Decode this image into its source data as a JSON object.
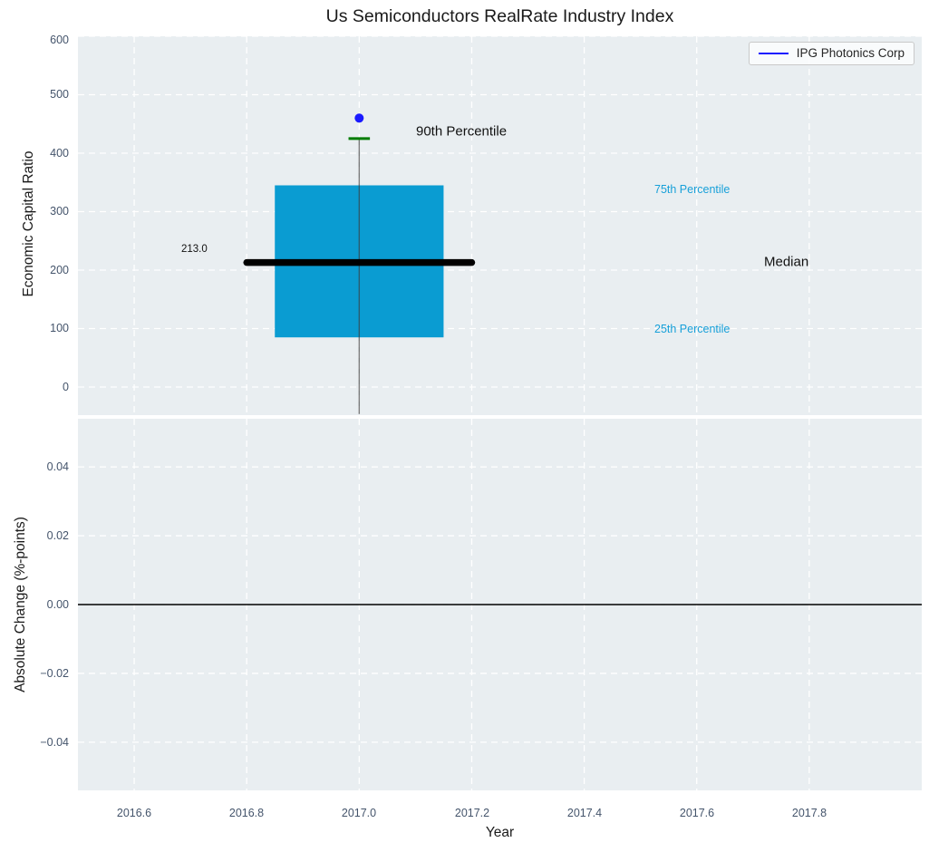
{
  "title": "Us Semiconductors RealRate Industry Index",
  "xaxis": {
    "label": "Year",
    "tick_labels": [
      "2016.6",
      "2016.8",
      "2017.0",
      "2017.2",
      "2017.4",
      "2017.6",
      "2017.8"
    ]
  },
  "top_plot": {
    "ylabel": "Economic Capital Ratio",
    "ytick_labels": [
      "600",
      "500",
      "400",
      "300",
      "200",
      "100",
      "0"
    ],
    "legend": {
      "label": "IPG Photonics Corp"
    }
  },
  "bottom_plot": {
    "ylabel": "Absolute Change (%-points)",
    "ytick_labels": [
      "0.04",
      "0.02",
      "0.00",
      "−0.02",
      "−0.04"
    ]
  },
  "colors": {
    "figure_bg": "#ffffff",
    "axes_bg": "#e9eef1",
    "grid": "#ffffff",
    "box_fill": "#0a9cd2",
    "median_line": "#000000",
    "whisker": "#3c3c3c",
    "whisker_cap": "#007c00",
    "point": "#1a1aff",
    "legend_line": "#1a1aff",
    "percentile_label": "#17a0d9",
    "tick_label": "#44546b",
    "zero_line": "#000000"
  },
  "chart_data": [
    {
      "type": "box",
      "name": "economic-capital-ratio-panel",
      "title": "Us Semiconductors RealRate Industry Index",
      "ylabel": "Economic Capital Ratio",
      "xlim": [
        2016.5,
        2018.0
      ],
      "ylim": [
        -48,
        600
      ],
      "xticks": [
        2016.6,
        2016.8,
        2017.0,
        2017.2,
        2017.4,
        2017.6,
        2017.8
      ],
      "yticks": [
        0,
        100,
        200,
        300,
        400,
        500,
        600
      ],
      "grid": true,
      "legend_position": "upper right",
      "box": {
        "x": 2017.0,
        "box_left": 2016.85,
        "box_right": 2017.15,
        "q1": 85,
        "median": 213.0,
        "q3": 345,
        "p90": 425,
        "whisker_low": -46,
        "median_line_left": 2016.8,
        "median_line_right": 2017.2,
        "cap_halfwidth": 0.019
      },
      "point": {
        "x": 2017.0,
        "y": 460,
        "series": "IPG Photonics Corp"
      },
      "annotations": [
        {
          "text": "90th Percentile",
          "x": 2017.1,
          "y": 435
        },
        {
          "text": "75th Percentile",
          "x": 2017.52,
          "y": 335
        },
        {
          "text": "25th Percentile",
          "x": 2017.52,
          "y": 95
        },
        {
          "text": "Median",
          "x": 2017.72,
          "y": 213
        },
        {
          "text": "213.0",
          "x": 2016.69,
          "y": 235
        }
      ]
    },
    {
      "type": "line",
      "name": "absolute-change-panel",
      "ylabel": "Absolute Change (%-points)",
      "xlabel": "Year",
      "xlim": [
        2016.5,
        2018.0
      ],
      "ylim": [
        -0.054,
        0.054
      ],
      "xticks": [
        2016.6,
        2016.8,
        2017.0,
        2017.2,
        2017.4,
        2017.6,
        2017.8
      ],
      "yticks": [
        0.04,
        0.02,
        0.0,
        -0.02,
        -0.04
      ],
      "grid": true,
      "zero_line": 0.0,
      "series": []
    }
  ]
}
